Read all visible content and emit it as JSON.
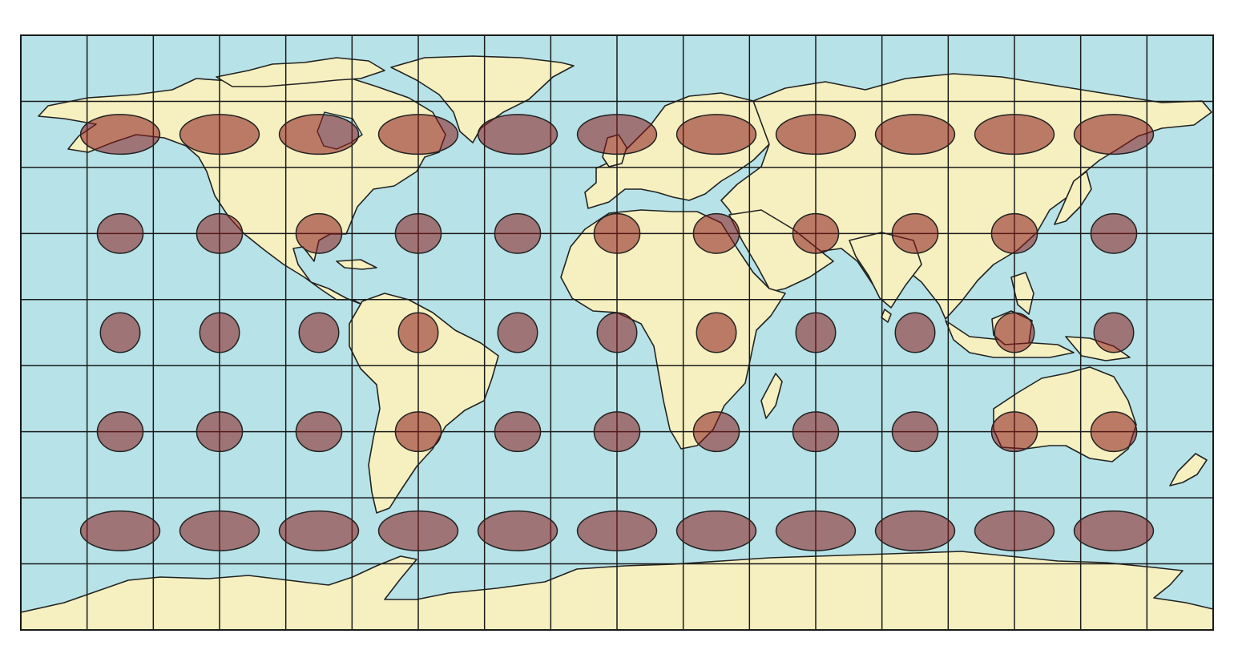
{
  "map": {
    "projection": "equirectangular",
    "colors": {
      "ocean": "#b7e3e8",
      "land": "#f6f0c0",
      "land_outline": "#222222",
      "graticule": "#1a1a1a",
      "indicatrix_fill": "#8b1a1a",
      "indicatrix_opacity": 0.55
    },
    "graticule": {
      "lon_step_deg": 20,
      "lat_step_deg": 20,
      "lon_range": [
        -180,
        180
      ],
      "lat_range": [
        -90,
        90
      ]
    },
    "tissot_indicatrices": {
      "radius_deg": 6,
      "longitudes": [
        -150,
        -120,
        -90,
        -60,
        -30,
        0,
        30,
        60,
        90,
        120,
        150
      ],
      "latitudes": [
        60,
        30,
        0,
        -30,
        -60
      ]
    }
  }
}
